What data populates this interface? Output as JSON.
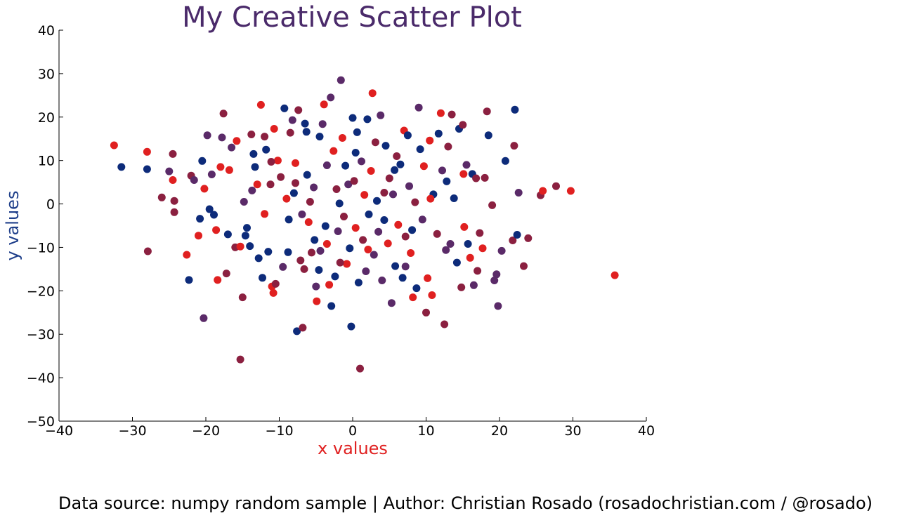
{
  "chart_data": {
    "type": "scatter",
    "title": "My Creative Scatter Plot",
    "xlabel": "x values",
    "ylabel": "y values",
    "xlim": [
      -40,
      40
    ],
    "ylim": [
      -50,
      40
    ],
    "xticks": [
      -40,
      -30,
      -20,
      -10,
      0,
      10,
      20,
      30,
      40
    ],
    "yticks": [
      -50,
      -40,
      -30,
      -20,
      -10,
      0,
      10,
      20,
      30,
      40
    ],
    "xtick_labels": [
      "−40",
      "−30",
      "−20",
      "−10",
      "0",
      "10",
      "20",
      "30",
      "40"
    ],
    "ytick_labels": [
      "−50",
      "−40",
      "−30",
      "−20",
      "−10",
      "0",
      "10",
      "20",
      "30",
      "40"
    ],
    "grid": false,
    "colors": [
      "#0d2b7a",
      "#e02020",
      "#8b2040",
      "#5a2a68"
    ],
    "title_color": "#4a2a6a",
    "xlabel_color": "#e02020",
    "ylabel_color": "#1f3f8a",
    "points": [
      [
        -32.5,
        13.5,
        1
      ],
      [
        -31.5,
        8.5,
        0
      ],
      [
        -28,
        12,
        1
      ],
      [
        -28,
        8,
        0
      ],
      [
        -27.9,
        -10.9,
        2
      ],
      [
        -26,
        1.5,
        2
      ],
      [
        -25,
        7.5,
        3
      ],
      [
        -24.5,
        11.5,
        2
      ],
      [
        -24.5,
        5.5,
        1
      ],
      [
        -24.3,
        0.7,
        2
      ],
      [
        -24.3,
        -1.9,
        2
      ],
      [
        -22.6,
        -11.7,
        1
      ],
      [
        -22.3,
        -17.5,
        0
      ],
      [
        -22,
        6.5,
        2
      ],
      [
        -21.6,
        5.5,
        3
      ],
      [
        -21,
        -7.3,
        1
      ],
      [
        -20.8,
        -3.4,
        0
      ],
      [
        -20.3,
        -26.3,
        3
      ],
      [
        -20.5,
        9.9,
        0
      ],
      [
        -20.2,
        3.5,
        1
      ],
      [
        -19.8,
        15.8,
        3
      ],
      [
        -19.5,
        -1.2,
        0
      ],
      [
        -19.2,
        6.8,
        3
      ],
      [
        -18.9,
        -2.5,
        0
      ],
      [
        -18.6,
        -6,
        1
      ],
      [
        -18.4,
        -17.5,
        1
      ],
      [
        -18,
        8.5,
        1
      ],
      [
        -17.8,
        15.3,
        3
      ],
      [
        -17.6,
        20.8,
        2
      ],
      [
        -17.2,
        -16,
        2
      ],
      [
        -17,
        -7,
        0
      ],
      [
        -16.8,
        7.8,
        1
      ],
      [
        -16.5,
        13,
        3
      ],
      [
        -16,
        -10,
        2
      ],
      [
        -15.8,
        14.5,
        1
      ],
      [
        -15.3,
        -35.8,
        2
      ],
      [
        -15,
        -21.5,
        2
      ],
      [
        -15.3,
        -9.8,
        1
      ],
      [
        -14.8,
        0.5,
        3
      ],
      [
        -14.4,
        -5.5,
        0
      ],
      [
        -14,
        -9.7,
        0
      ],
      [
        -13.8,
        16,
        2
      ],
      [
        -13.5,
        11.5,
        0
      ],
      [
        -13.3,
        8.5,
        0
      ],
      [
        -13,
        4.5,
        1
      ],
      [
        -12.8,
        -12.5,
        0
      ],
      [
        -12.5,
        22.8,
        1
      ],
      [
        -12.3,
        -17,
        0
      ],
      [
        -12,
        15.5,
        2
      ],
      [
        -11.8,
        12.5,
        0
      ],
      [
        -11.5,
        -11,
        0
      ],
      [
        -11.2,
        4.5,
        2
      ],
      [
        -11,
        -19,
        1
      ],
      [
        -10.8,
        -20.5,
        1
      ],
      [
        -10.7,
        17.3,
        1
      ],
      [
        -10.5,
        -18.4,
        2
      ],
      [
        -10.2,
        10,
        1
      ],
      [
        -9.8,
        6.2,
        2
      ],
      [
        -9.5,
        -14.5,
        3
      ],
      [
        -9.3,
        22,
        0
      ],
      [
        -8.8,
        -11.1,
        0
      ],
      [
        -8.7,
        -3.6,
        0
      ],
      [
        -8.5,
        16.4,
        2
      ],
      [
        -8.2,
        19.3,
        3
      ],
      [
        -8,
        2.5,
        0
      ],
      [
        -7.8,
        9.4,
        1
      ],
      [
        -7.6,
        -29.3,
        0
      ],
      [
        -7.4,
        21.6,
        2
      ],
      [
        -7.1,
        -13,
        2
      ],
      [
        -6.8,
        -28.5,
        2
      ],
      [
        -6.6,
        -15,
        2
      ],
      [
        -6.5,
        18.5,
        0
      ],
      [
        -6.3,
        16.6,
        0
      ],
      [
        -6.2,
        6.7,
        0
      ],
      [
        -6,
        -4.2,
        1
      ],
      [
        -5.8,
        0.5,
        2
      ],
      [
        -5.6,
        -11.2,
        2
      ],
      [
        -5.3,
        3.8,
        3
      ],
      [
        -5,
        -19,
        3
      ],
      [
        -4.9,
        -22.4,
        1
      ],
      [
        -4.6,
        -15.2,
        0
      ],
      [
        -4.4,
        -10.8,
        3
      ],
      [
        -4.1,
        18.4,
        3
      ],
      [
        -3.9,
        22.9,
        1
      ],
      [
        -3.7,
        -5.1,
        0
      ],
      [
        -3.5,
        -9.2,
        1
      ],
      [
        -3.2,
        -18.6,
        1
      ],
      [
        -3,
        24.5,
        3
      ],
      [
        -2.9,
        -23.5,
        0
      ],
      [
        -2.6,
        12.2,
        1
      ],
      [
        -2.4,
        -16.7,
        0
      ],
      [
        -2.2,
        3.4,
        2
      ],
      [
        -2,
        -6.3,
        3
      ],
      [
        -1.8,
        0.1,
        0
      ],
      [
        -1.6,
        28.5,
        3
      ],
      [
        -1.4,
        15.2,
        1
      ],
      [
        -1.2,
        -2.9,
        2
      ],
      [
        -1,
        8.8,
        0
      ],
      [
        -0.8,
        -13.8,
        1
      ],
      [
        -0.6,
        4.5,
        3
      ],
      [
        -0.4,
        -10.2,
        0
      ],
      [
        -0.2,
        -28.2,
        0
      ],
      [
        0,
        19.8,
        0
      ],
      [
        0.2,
        5.3,
        2
      ],
      [
        0.4,
        -5.5,
        1
      ],
      [
        0.6,
        16.5,
        0
      ],
      [
        0.8,
        -18.1,
        0
      ],
      [
        1,
        -37.9,
        2
      ],
      [
        1.2,
        9.8,
        3
      ],
      [
        1.4,
        -8.3,
        2
      ],
      [
        1.6,
        2.1,
        1
      ],
      [
        1.8,
        -15.5,
        3
      ],
      [
        2,
        19.5,
        0
      ],
      [
        2.2,
        -2.4,
        0
      ],
      [
        2.5,
        7.6,
        1
      ],
      [
        2.7,
        25.5,
        1
      ],
      [
        2.9,
        -11.7,
        3
      ],
      [
        3.1,
        14.2,
        2
      ],
      [
        3.3,
        0.7,
        0
      ],
      [
        3.5,
        -6.4,
        3
      ],
      [
        3.8,
        20.4,
        3
      ],
      [
        4,
        -17.6,
        3
      ],
      [
        4.3,
        -3.7,
        0
      ],
      [
        4.5,
        13.4,
        0
      ],
      [
        4.8,
        -9.1,
        1
      ],
      [
        5,
        5.9,
        2
      ],
      [
        5.3,
        -22.8,
        3
      ],
      [
        5.5,
        2.2,
        3
      ],
      [
        5.8,
        -14.3,
        0
      ],
      [
        6,
        11,
        2
      ],
      [
        6.2,
        -4.8,
        1
      ],
      [
        6.5,
        9.1,
        0
      ],
      [
        6.8,
        -17,
        0
      ],
      [
        7,
        16.9,
        1
      ],
      [
        7.2,
        -7.5,
        2
      ],
      [
        7.5,
        15.8,
        0
      ],
      [
        7.7,
        4.1,
        3
      ],
      [
        7.9,
        -11.3,
        1
      ],
      [
        8.2,
        -21.5,
        1
      ],
      [
        8.5,
        0.4,
        2
      ],
      [
        8.7,
        -19.4,
        0
      ],
      [
        9,
        22.2,
        3
      ],
      [
        9.2,
        12.6,
        0
      ],
      [
        9.5,
        -3.6,
        3
      ],
      [
        9.7,
        8.7,
        1
      ],
      [
        10,
        -25,
        2
      ],
      [
        10.2,
        -17.1,
        1
      ],
      [
        10.5,
        14.6,
        1
      ],
      [
        10.8,
        -21,
        1
      ],
      [
        11,
        2.2,
        0
      ],
      [
        11.5,
        -6.9,
        2
      ],
      [
        11.7,
        16.2,
        0
      ],
      [
        12,
        20.9,
        1
      ],
      [
        12.2,
        7.7,
        3
      ],
      [
        12.5,
        -27.7,
        2
      ],
      [
        12.8,
        5.2,
        0
      ],
      [
        13,
        13.2,
        2
      ],
      [
        13.3,
        -9.2,
        3
      ],
      [
        13.5,
        20.6,
        2
      ],
      [
        13.8,
        1.3,
        0
      ],
      [
        14.2,
        -13.5,
        0
      ],
      [
        14.5,
        17.3,
        0
      ],
      [
        14.8,
        -19.2,
        2
      ],
      [
        15,
        18.2,
        2
      ],
      [
        15.2,
        -5.3,
        1
      ],
      [
        15.5,
        9,
        3
      ],
      [
        15.7,
        -9.2,
        0
      ],
      [
        16,
        -12.4,
        1
      ],
      [
        16.3,
        6.9,
        0
      ],
      [
        16.5,
        -18.7,
        3
      ],
      [
        16.8,
        5.9,
        2
      ],
      [
        17,
        -15.4,
        2
      ],
      [
        17.3,
        -6.7,
        2
      ],
      [
        17.7,
        -10.2,
        1
      ],
      [
        18,
        6,
        2
      ],
      [
        18.3,
        21.3,
        2
      ],
      [
        18.5,
        15.8,
        0
      ],
      [
        19,
        -0.3,
        2
      ],
      [
        19.3,
        -17.6,
        3
      ],
      [
        19.6,
        -16.2,
        3
      ],
      [
        19.8,
        -23.5,
        3
      ],
      [
        20.3,
        -10.8,
        3
      ],
      [
        20.8,
        9.9,
        0
      ],
      [
        21.8,
        -8.4,
        2
      ],
      [
        22,
        13.4,
        2
      ],
      [
        22.1,
        21.7,
        0
      ],
      [
        22.4,
        -7.1,
        0
      ],
      [
        22.6,
        2.6,
        3
      ],
      [
        23.3,
        -14.3,
        2
      ],
      [
        23.9,
        -7.9,
        2
      ],
      [
        25.6,
        2,
        2
      ],
      [
        25.9,
        3,
        1
      ],
      [
        27.7,
        4.1,
        2
      ],
      [
        29.7,
        3,
        1
      ],
      [
        35.7,
        -16.4,
        1
      ],
      [
        -11.1,
        9.7,
        2
      ],
      [
        -4.5,
        15.5,
        0
      ],
      [
        5.7,
        7.8,
        0
      ],
      [
        -6.9,
        -2.4,
        3
      ],
      [
        2.1,
        -10.5,
        1
      ],
      [
        -13.7,
        3.1,
        3
      ],
      [
        12.7,
        -10.6,
        3
      ],
      [
        -9,
        1.2,
        1
      ],
      [
        8.1,
        -6,
        0
      ],
      [
        -3.5,
        8.9,
        3
      ],
      [
        4.3,
        2.6,
        2
      ],
      [
        -14.6,
        -7.3,
        0
      ],
      [
        15.1,
        6.9,
        1
      ],
      [
        -1.7,
        -13.5,
        2
      ],
      [
        0.4,
        11.8,
        0
      ],
      [
        -7.8,
        4.8,
        2
      ],
      [
        10.6,
        1.2,
        1
      ],
      [
        -5.2,
        -8.3,
        0
      ],
      [
        7.2,
        -14.4,
        3
      ],
      [
        -12,
        -2.3,
        1
      ]
    ]
  },
  "footer": {
    "text": "Data source: numpy random sample | Author: Christian Rosado (rosadochristian.com / @rosado)"
  }
}
